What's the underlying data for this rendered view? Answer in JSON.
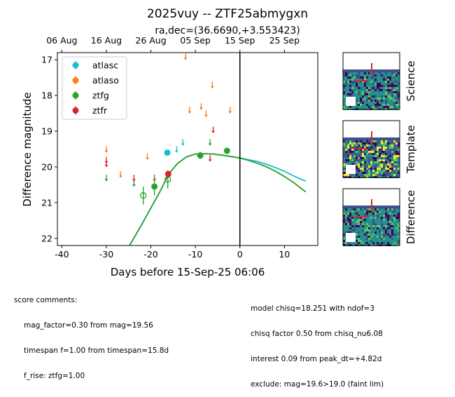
{
  "chart_data": {
    "type": "scatter",
    "title": "2025vuy -- ZTF25abmygxn",
    "subtitle": "ra,dec=(36.6690,+3.553423)",
    "xlabel": "Days before 15-Sep-25 06:06",
    "ylabel": "Difference magnitude",
    "xlim": [
      -41,
      17.5
    ],
    "ylim": [
      22.2,
      16.8
    ],
    "y_inverted": true,
    "grid": false,
    "legend_position": "top-left",
    "x_ticks": [
      -40,
      -30,
      -20,
      -10,
      0,
      10
    ],
    "y_ticks": [
      17,
      18,
      19,
      20,
      21,
      22
    ],
    "top_axis_ticks": [
      {
        "x": -40,
        "label": "06 Aug"
      },
      {
        "x": -30,
        "label": "16 Aug"
      },
      {
        "x": -20,
        "label": "26 Aug"
      },
      {
        "x": -10,
        "label": "05 Sep"
      },
      {
        "x": 0,
        "label": "15 Sep"
      },
      {
        "x": 10,
        "label": "25 Sep"
      }
    ],
    "vline_x": 0,
    "series": [
      {
        "name": "atlasc",
        "color": "#17becf",
        "points": [
          {
            "x": -16.3,
            "y": 19.6,
            "err": 0.07
          }
        ],
        "upper_limits": [
          {
            "x": -14.2,
            "y": 19.5
          },
          {
            "x": -12.8,
            "y": 19.3
          }
        ]
      },
      {
        "name": "atlaso",
        "color": "#ff7f0e",
        "points": [],
        "upper_limits": [
          {
            "x": -30.0,
            "y": 19.5
          },
          {
            "x": -26.8,
            "y": 20.2
          },
          {
            "x": -20.8,
            "y": 19.7
          },
          {
            "x": -12.2,
            "y": 16.9
          },
          {
            "x": -11.3,
            "y": 18.4
          },
          {
            "x": -8.7,
            "y": 18.3
          },
          {
            "x": -7.6,
            "y": 18.5
          },
          {
            "x": -6.2,
            "y": 17.7
          },
          {
            "x": -2.2,
            "y": 18.4
          }
        ]
      },
      {
        "name": "ztfg",
        "color": "#2ca02c",
        "points": [
          {
            "x": -19.2,
            "y": 20.55,
            "err": 0.25
          },
          {
            "x": -8.9,
            "y": 19.68,
            "err": 0.1
          },
          {
            "x": -2.9,
            "y": 19.55,
            "err": 0.08
          }
        ],
        "nondetections": [
          {
            "x": -21.7,
            "y": 20.8,
            "err": 0.25
          },
          {
            "x": -16.2,
            "y": 20.35,
            "err": 0.25
          }
        ],
        "upper_limits": [
          {
            "x": -30.0,
            "y": 20.3
          },
          {
            "x": -23.8,
            "y": 20.45
          },
          {
            "x": -6.7,
            "y": 19.3
          }
        ]
      },
      {
        "name": "ztfr",
        "color": "#d62728",
        "points": [
          {
            "x": -16.1,
            "y": 20.2,
            "err": 0.1
          }
        ],
        "upper_limits": [
          {
            "x": -30.0,
            "y": 19.8
          },
          {
            "x": -30.0,
            "y": 19.9
          },
          {
            "x": -23.8,
            "y": 20.3
          },
          {
            "x": -19.2,
            "y": 20.3
          },
          {
            "x": -6.7,
            "y": 19.75
          },
          {
            "x": -6.0,
            "y": 18.95
          }
        ]
      }
    ],
    "models": [
      {
        "color": "#17becf",
        "x": [
          -25,
          -22,
          -20,
          -18,
          -16,
          -14,
          -12,
          -10,
          -8,
          -6,
          -4,
          -2,
          0,
          2,
          4,
          6,
          8,
          10,
          12,
          14.8
        ],
        "y": [
          22.25,
          21.6,
          21.15,
          20.7,
          20.2,
          19.9,
          19.72,
          19.64,
          19.63,
          19.64,
          19.67,
          19.71,
          19.75,
          19.8,
          19.85,
          19.93,
          20.02,
          20.12,
          20.25,
          20.4
        ]
      },
      {
        "color": "#2ca02c",
        "x": [
          -25,
          -22,
          -20,
          -18,
          -16,
          -14,
          -12,
          -10,
          -8,
          -6,
          -4,
          -2,
          0,
          2,
          4,
          6,
          8,
          10,
          12,
          14.8
        ],
        "y": [
          22.25,
          21.6,
          21.15,
          20.7,
          20.2,
          19.9,
          19.72,
          19.64,
          19.63,
          19.64,
          19.67,
          19.71,
          19.75,
          19.82,
          19.9,
          20.0,
          20.12,
          20.27,
          20.43,
          20.7
        ]
      }
    ]
  },
  "stamps": [
    {
      "label": "Science"
    },
    {
      "label": "Template"
    },
    {
      "label": "Difference"
    }
  ],
  "score_comments": {
    "heading": "score comments:",
    "lines": [
      "mag_factor=0.30 from mag=19.56",
      "timespan f=1.00 from timespan=15.8d",
      "f_rise: ztfg=1.00"
    ]
  },
  "model_comments": {
    "lines": [
      "model chisq=18.251 with ndof=3",
      "chisq factor 0.50 from chisq_nu6.08",
      "interest 0.09 from peak_dt=+4.82d",
      "exclude: mag=19.6>19.0 (faint lim)"
    ]
  }
}
